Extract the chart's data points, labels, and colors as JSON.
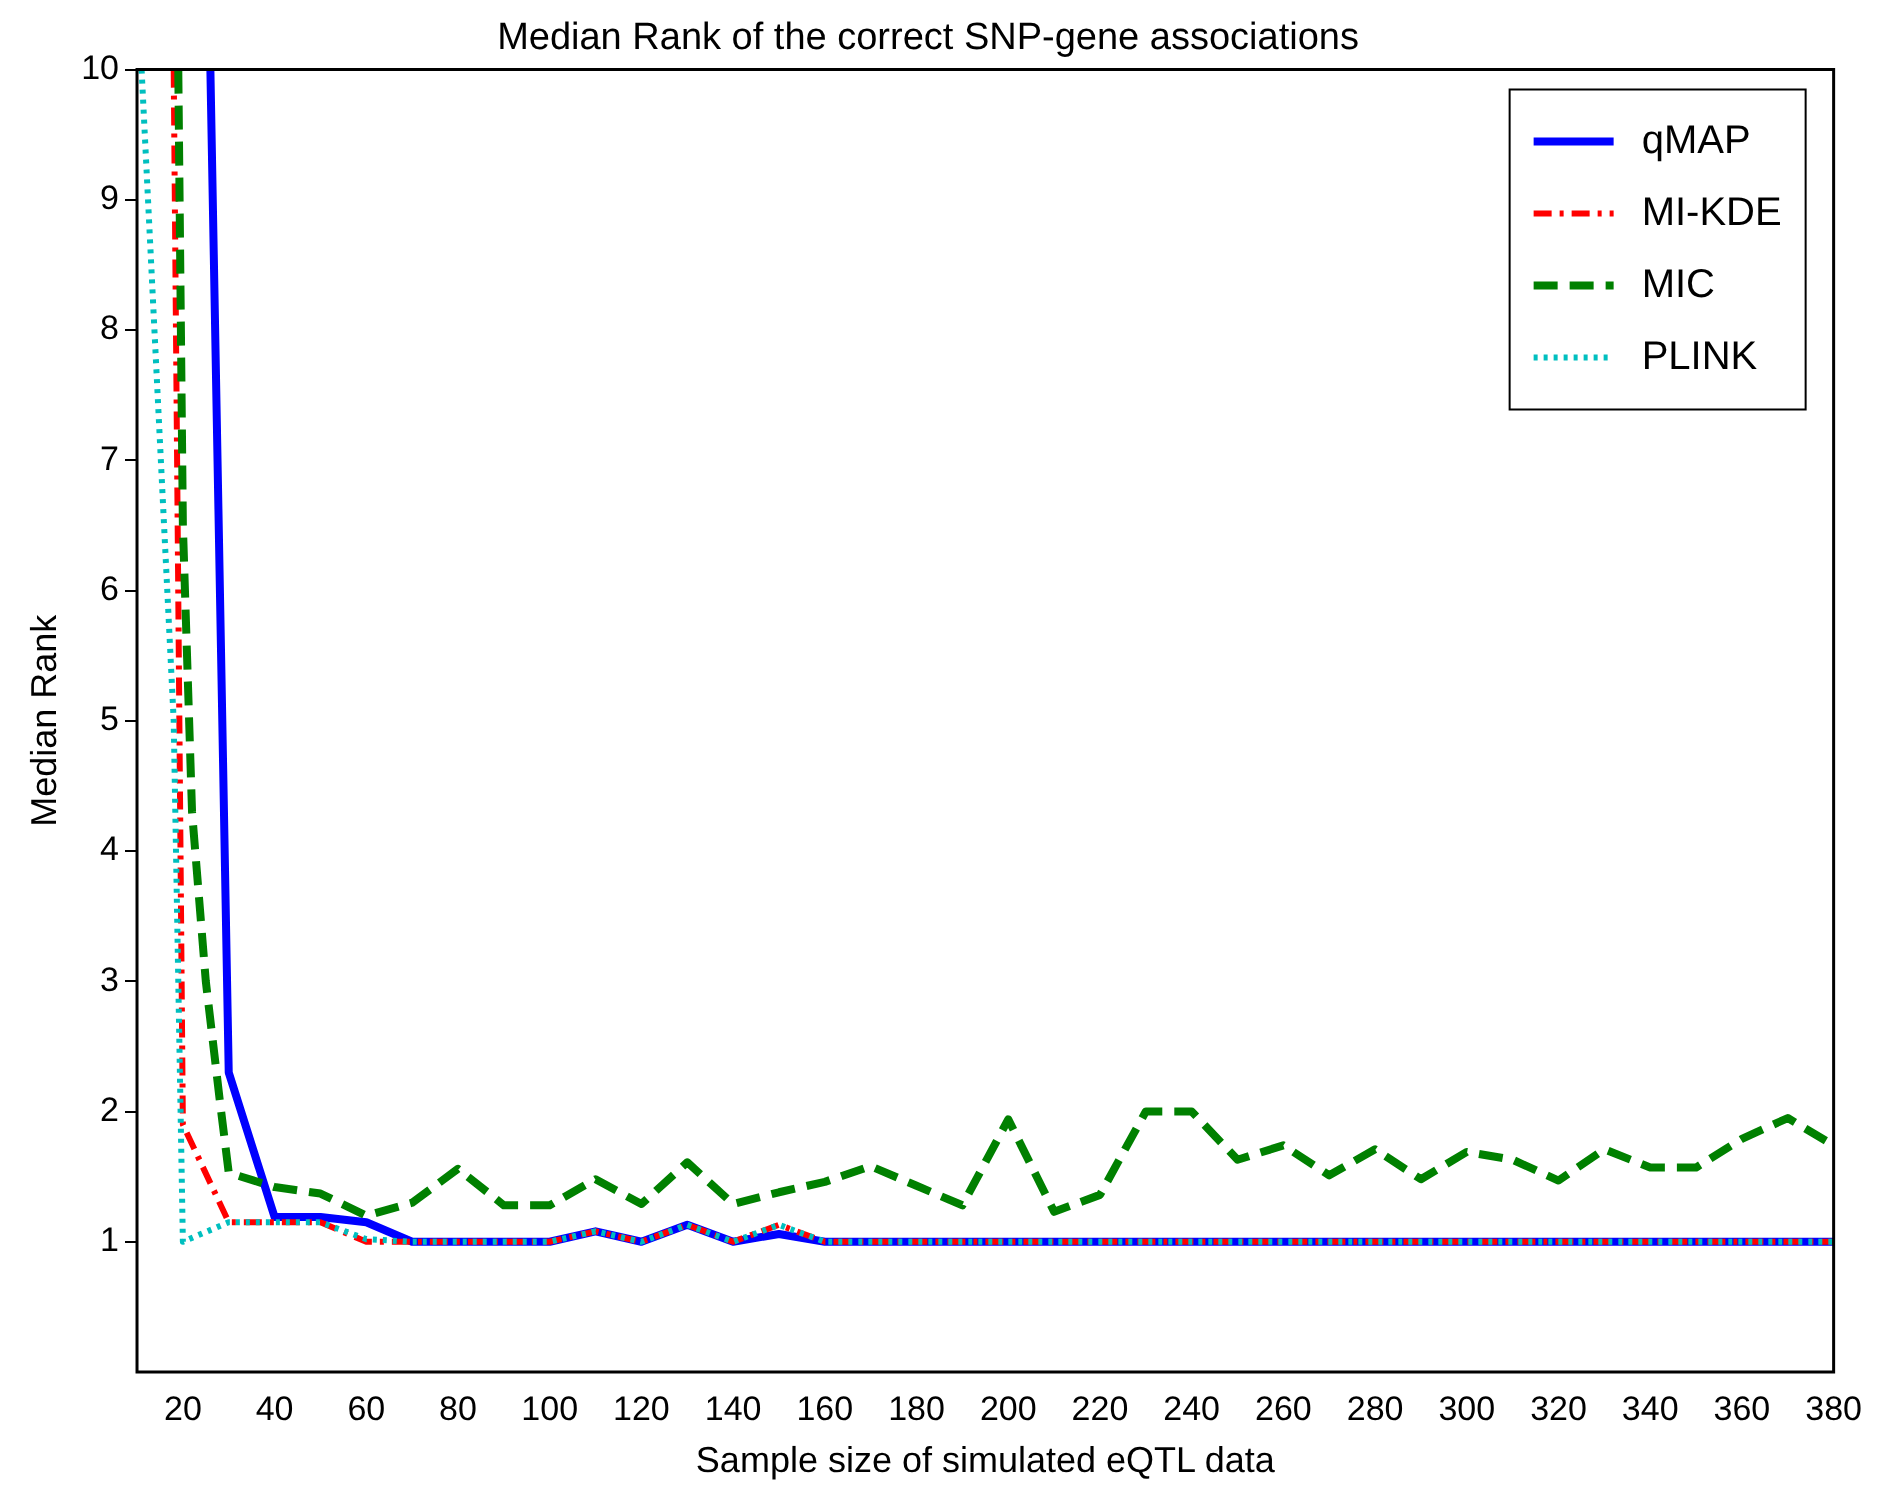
{
  "chart_data": {
    "type": "line",
    "title": "Median Rank of the correct SNP-gene associations",
    "xlabel": "Sample size of simulated eQTL data",
    "ylabel": "Median Rank",
    "xlim": [
      10,
      380
    ],
    "xticks": [
      20,
      40,
      60,
      80,
      100,
      120,
      140,
      160,
      180,
      200,
      220,
      240,
      260,
      280,
      300,
      320,
      340,
      360,
      380
    ],
    "ylim": [
      0,
      10
    ],
    "yticks": [
      1,
      2,
      3,
      4,
      5,
      6,
      7,
      8,
      9,
      10
    ],
    "grid": false,
    "legend": "top right",
    "marker": "none",
    "series": [
      {
        "name": "qMAP",
        "color": "#0000ff",
        "line_style": "solid",
        "x": [
          26,
          30,
          40,
          50,
          60,
          70,
          80,
          90,
          100,
          110,
          120,
          130,
          140,
          150,
          160,
          170,
          180,
          190,
          200,
          210,
          220,
          230,
          240,
          250,
          260,
          270,
          280,
          290,
          300,
          310,
          320,
          330,
          340,
          350,
          360,
          370,
          380
        ],
        "values": [
          10,
          2.3,
          1.19,
          1.19,
          1.15,
          1,
          1,
          1,
          1,
          1.08,
          1,
          1.13,
          1,
          1.06,
          1,
          1,
          1,
          1,
          1,
          1,
          1,
          1,
          1,
          1,
          1,
          1,
          1,
          1,
          1,
          1,
          1,
          1,
          1,
          1,
          1,
          1,
          1
        ]
      },
      {
        "name": "MI-KDE",
        "color": "#ff0000",
        "line_style": "dashdot",
        "x": [
          18,
          20,
          30,
          40,
          50,
          60,
          70,
          80,
          90,
          100,
          110,
          120,
          130,
          140,
          150,
          160,
          170,
          180,
          190,
          200,
          210,
          220,
          230,
          240,
          250,
          260,
          270,
          280,
          290,
          300,
          310,
          320,
          330,
          340,
          350,
          360,
          370,
          380
        ],
        "values": [
          10,
          1.9,
          1.15,
          1.15,
          1.15,
          1,
          1,
          1,
          1,
          1,
          1.08,
          1,
          1.13,
          1,
          1.13,
          1,
          1,
          1,
          1,
          1,
          1,
          1,
          1,
          1,
          1,
          1,
          1,
          1,
          1,
          1,
          1,
          1,
          1,
          1,
          1,
          1,
          1,
          1
        ]
      },
      {
        "name": "MIC",
        "color": "#008000",
        "line_style": "dashed",
        "x": [
          19,
          20,
          22,
          25,
          28,
          30,
          40,
          50,
          60,
          70,
          80,
          90,
          100,
          110,
          120,
          130,
          140,
          150,
          160,
          170,
          180,
          190,
          200,
          210,
          220,
          230,
          240,
          250,
          260,
          270,
          280,
          290,
          300,
          310,
          320,
          330,
          340,
          350,
          360,
          370,
          380
        ],
        "values": [
          10,
          6.5,
          4.3,
          3,
          2.1,
          1.53,
          1.42,
          1.37,
          1.2,
          1.3,
          1.56,
          1.28,
          1.28,
          1.48,
          1.29,
          1.61,
          1.29,
          1.38,
          1.46,
          1.58,
          1.43,
          1.28,
          1.94,
          1.23,
          1.36,
          2.0,
          2.0,
          1.63,
          1.74,
          1.51,
          1.71,
          1.48,
          1.69,
          1.63,
          1.47,
          1.71,
          1.57,
          1.57,
          1.79,
          1.95,
          1.74
        ]
      },
      {
        "name": "PLINK",
        "color": "#00bfbf",
        "line_style": "dotted",
        "x": [
          11,
          18,
          19.5,
          20,
          30,
          40,
          50,
          60,
          70,
          80,
          90,
          100,
          110,
          120,
          130,
          140,
          150,
          160,
          170,
          180,
          190,
          200,
          210,
          220,
          230,
          240,
          250,
          260,
          270,
          280,
          290,
          300,
          310,
          320,
          330,
          340,
          350,
          360,
          370,
          380
        ],
        "values": [
          10,
          5,
          2,
          1,
          1.15,
          1.15,
          1.15,
          1.02,
          1,
          1,
          1,
          1,
          1.08,
          1,
          1.13,
          1,
          1.13,
          1,
          1,
          1,
          1,
          1,
          1,
          1,
          1,
          1,
          1,
          1,
          1,
          1,
          1,
          1,
          1,
          1,
          1,
          1,
          1,
          1,
          1,
          1
        ]
      }
    ]
  }
}
